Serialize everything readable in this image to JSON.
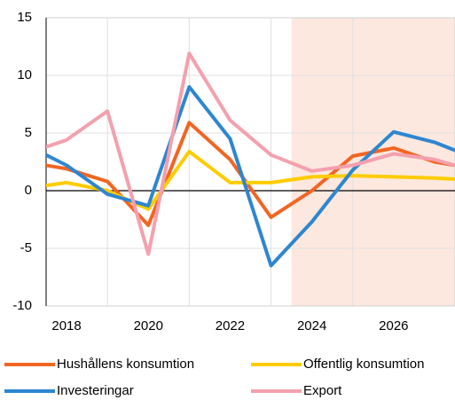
{
  "chart_data": {
    "type": "line",
    "x": [
      2017,
      2018,
      2019,
      2020,
      2021,
      2022,
      2023,
      2024,
      2025,
      2026,
      2027,
      2028
    ],
    "series": [
      {
        "name": "Hushållens konsumtion",
        "color": "#f26522",
        "values": [
          2.5,
          1.9,
          0.8,
          -3.0,
          5.9,
          2.7,
          -2.3,
          0.0,
          3.0,
          3.7,
          2.5,
          1.9
        ]
      },
      {
        "name": "Offentlig konsumtion",
        "color": "#ffcc00",
        "values": [
          0.2,
          0.7,
          0.0,
          -1.6,
          3.4,
          0.7,
          0.7,
          1.2,
          1.3,
          1.2,
          1.1,
          0.9
        ]
      },
      {
        "name": "Investeringar",
        "color": "#2e86d0",
        "values": [
          4.0,
          2.2,
          -0.3,
          -1.3,
          9.0,
          4.5,
          -6.5,
          -2.7,
          1.8,
          5.1,
          4.2,
          2.8
        ]
      },
      {
        "name": "Export",
        "color": "#f4a0ae",
        "values": [
          3.2,
          4.4,
          6.9,
          -5.5,
          11.9,
          6.1,
          3.1,
          1.7,
          2.2,
          3.2,
          2.7,
          1.7
        ]
      }
    ],
    "xlim": [
      2017.5,
      2027.5
    ],
    "xticks": [
      2018,
      2020,
      2022,
      2024,
      2026
    ],
    "ylim": [
      -10,
      15
    ],
    "yticks": [
      -10,
      -5,
      0,
      5,
      10,
      15
    ],
    "grid": true,
    "forecast_from": 2023.5,
    "forecast_color": "#fde8df",
    "legend": "bottom"
  }
}
